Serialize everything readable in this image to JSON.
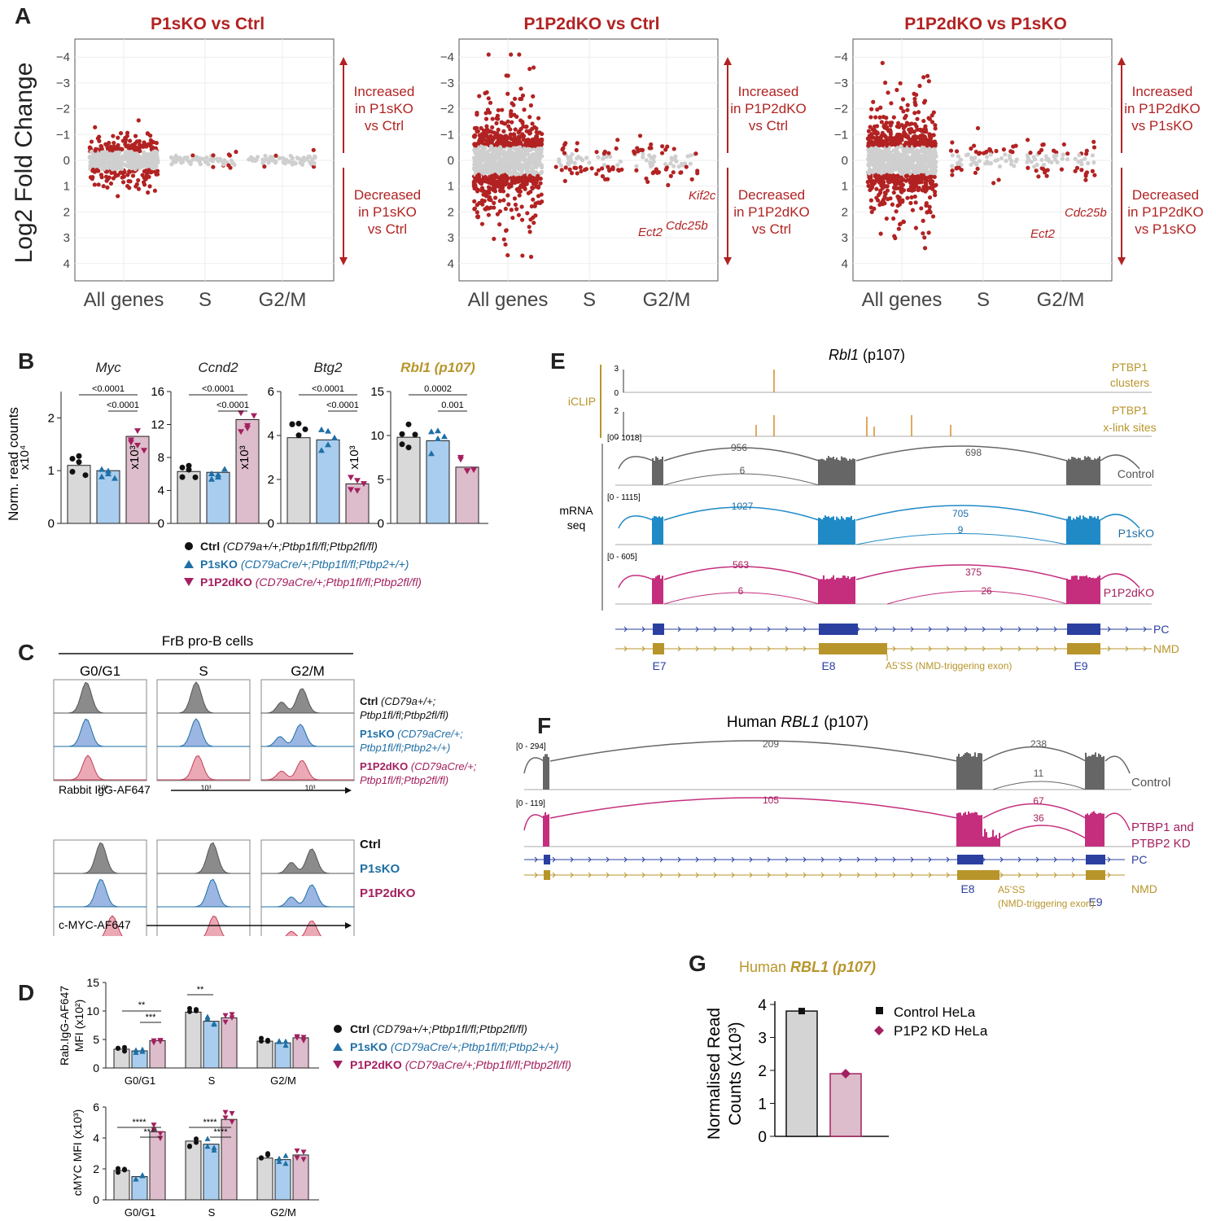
{
  "panels": {
    "A": "A",
    "B": "B",
    "C": "C",
    "D": "D",
    "E": "E",
    "F": "F",
    "G": "G"
  },
  "A": {
    "ylabel": "Log2 Fold Change",
    "plots": [
      {
        "title": "P1sKO vs Ctrl",
        "inc": [
          "Increased",
          "in P1sKO",
          "vs Ctrl"
        ],
        "dec": [
          "Decreased",
          "in P1sKO",
          "vs Ctrl"
        ],
        "labels": []
      },
      {
        "title": "P1P2dKO vs Ctrl",
        "inc": [
          "Increased",
          "in P1P2dKO",
          "vs Ctrl"
        ],
        "dec": [
          "Decreased",
          "in P1P2dKO",
          "vs Ctrl"
        ],
        "labels": [
          "Kif2c",
          "Cdc25b",
          "Ect2"
        ]
      },
      {
        "title": "P1P2dKO vs P1sKO",
        "inc": [
          "Increased",
          "in P1P2dKO",
          "vs P1sKO"
        ],
        "dec": [
          "Decreased",
          "in P1P2dKO",
          "vs P1sKO"
        ],
        "labels": [
          "Cdc25b",
          "Ect2"
        ]
      }
    ],
    "xcats": [
      "All genes",
      "S",
      "G2/M"
    ],
    "yticks": [
      "4",
      "3",
      "2",
      "1",
      "0",
      "−1",
      "−2",
      "−3",
      "−4"
    ]
  },
  "B": {
    "ylabel": "Norm. read counts",
    "genes": [
      {
        "name": "Myc",
        "unit": "x10⁴",
        "ticks": [
          "0",
          "1",
          "2"
        ],
        "means": [
          1.1,
          1.0,
          1.65
        ],
        "p1": "<0.0001",
        "p2": "<0.0001"
      },
      {
        "name": "Ccnd2",
        "unit": "x10³",
        "ticks": [
          "0",
          "4",
          "8",
          "12",
          "16"
        ],
        "means": [
          6.3,
          6.2,
          12.6
        ],
        "p1": "<0.0001",
        "p2": "<0.0001"
      },
      {
        "name": "Btg2",
        "unit": "x10³",
        "ticks": [
          "0",
          "2",
          "4",
          "6"
        ],
        "means": [
          3.9,
          3.8,
          1.8
        ],
        "p1": "<0.0001",
        "p2": "<0.0001"
      },
      {
        "name": "Rbl1 (p107)",
        "unit": "x10³",
        "ticks": [
          "0",
          "5",
          "10",
          "15"
        ],
        "means": [
          9.8,
          9.4,
          6.4
        ],
        "p1": "0.0002",
        "p2": "0.001"
      }
    ],
    "legend": [
      {
        "bold": "Ctrl",
        "geno": "(CD79a+/+;Ptbp1fl/fl;Ptbp2fl/fl)"
      },
      {
        "bold": "P1sKO",
        "geno": "(CD79aCre/+;Ptbp1fl/fl;Ptbp2+/+)"
      },
      {
        "bold": "P1P2dKO",
        "geno": "(CD79aCre/+;Ptbp1fl/fl;Ptbp2fl/fl)"
      }
    ]
  },
  "C": {
    "header": "FrB pro-B cells",
    "phases": [
      "G0/G1",
      "S",
      "G2/M"
    ],
    "axis1": "Rabbit IgG-AF647",
    "axis2": "c-MYC-AF647",
    "leg1": [
      {
        "bold": "Ctrl",
        "geno": "(CD79a+/+;",
        "geno2": "Ptbp1fl/fl;Ptbp2fl/fl)"
      },
      {
        "bold": "P1sKO",
        "geno": "(CD79aCre/+;",
        "geno2": "Ptbp1fl/fl;Ptbp2+/+)"
      },
      {
        "bold": "P1P2dKO",
        "geno": "(CD79aCre/+;",
        "geno2": "Ptbp1fl/fl;Ptbp2fl/fl)"
      }
    ],
    "leg2": [
      "Ctrl",
      "P1sKO",
      "P1P2dKO"
    ],
    "tick": "10³"
  },
  "D": {
    "y1": [
      "Rab.IgG-AF647",
      "MFI (x10²)"
    ],
    "y2": "cMYC MFI (x10³)",
    "cats": [
      "G0/G1",
      "S",
      "G2/M"
    ],
    "top": {
      "ticks": [
        "0",
        "5",
        "10",
        "15"
      ],
      "means": [
        [
          3.3,
          3.0,
          4.8
        ],
        [
          9.8,
          8.2,
          8.8
        ],
        [
          4.7,
          4.4,
          5.3
        ]
      ],
      "sig": [
        "**",
        "***",
        "**"
      ]
    },
    "bot": {
      "ticks": [
        "0",
        "2",
        "4",
        "6"
      ],
      "means": [
        [
          1.9,
          1.5,
          4.4
        ],
        [
          3.8,
          3.6,
          5.2
        ],
        [
          2.7,
          2.6,
          2.9
        ]
      ],
      "sig": [
        "****",
        "****",
        "****",
        "****"
      ]
    },
    "legend": [
      {
        "bold": "Ctrl",
        "geno": "(CD79a+/+;Ptbp1fl/fl;Ptbp2fl/fl)"
      },
      {
        "bold": "P1sKO",
        "geno": "(CD79aCre/+;Ptbp1fl/fl;Ptbp2+/+)"
      },
      {
        "bold": "P1P2dKO",
        "geno": "(CD79aCre/+;Ptbp1fl/fl;Ptbp2fl/fl)"
      }
    ]
  },
  "E": {
    "title_it": "Rbl1",
    "title_rest": " (p107)",
    "iclip": "iCLIP",
    "track1": [
      "PTBP1",
      "clusters"
    ],
    "track2": [
      "PTBP1",
      "x-link sites"
    ],
    "t1ticks": [
      "3",
      "0"
    ],
    "t2ticks": [
      "2",
      "0"
    ],
    "mrna": [
      "mRNA",
      "seq"
    ],
    "ranges": [
      "[0 - 1018]",
      "[0 - 1115]",
      "[0 - 605]"
    ],
    "samples": [
      "Control",
      "P1sKO",
      "P1P2dKO"
    ],
    "junctions": [
      [
        "956",
        "6",
        "698"
      ],
      [
        "1027",
        "705",
        "9"
      ],
      [
        "563",
        "6",
        "375",
        "26"
      ]
    ],
    "isoforms": [
      "PC",
      "NMD"
    ],
    "exons": [
      "E7",
      "E8",
      "E9"
    ],
    "a5ss": "A5’SS (NMD-triggering exon)"
  },
  "F": {
    "title_pre": "Human ",
    "title_it": "RBL1",
    "title_rest": " (p107)",
    "ranges": [
      "[0 - 294]",
      "[0 - 119]"
    ],
    "samples": [
      "Control",
      "PTBP1 and",
      "PTBP2 KD"
    ],
    "junctions": [
      [
        "209",
        "238",
        "11"
      ],
      [
        "105",
        "67",
        "36"
      ]
    ],
    "isoforms": [
      "PC",
      "NMD"
    ],
    "exons": [
      "E8",
      "E9"
    ],
    "a5ss": [
      "A5’SS",
      "(NMD-triggering exon)"
    ]
  },
  "G": {
    "title_pre": "Human ",
    "title_bold": "RBL1 (p107)",
    "ylabel": [
      "Normalised Read",
      "Counts (x10³)"
    ],
    "legend": [
      "Control HeLa",
      "P1P2 KD HeLa"
    ],
    "chart_data": {
      "type": "bar",
      "categories": [
        "Control HeLa",
        "P1P2 KD HeLa"
      ],
      "values": [
        3.8,
        1.9
      ],
      "ylim": [
        0,
        4
      ],
      "yticks": [
        "0",
        "1",
        "2",
        "3",
        "4"
      ]
    }
  },
  "colors": {
    "red": "#b22222",
    "grey": "#cfcfcf",
    "ctrl": "#d9d9d9",
    "p1": "#a9cdee",
    "p2": "#ddbccc",
    "blue": "#1f6fa5",
    "mag": "#a3205f",
    "gold": "#b8952b"
  }
}
